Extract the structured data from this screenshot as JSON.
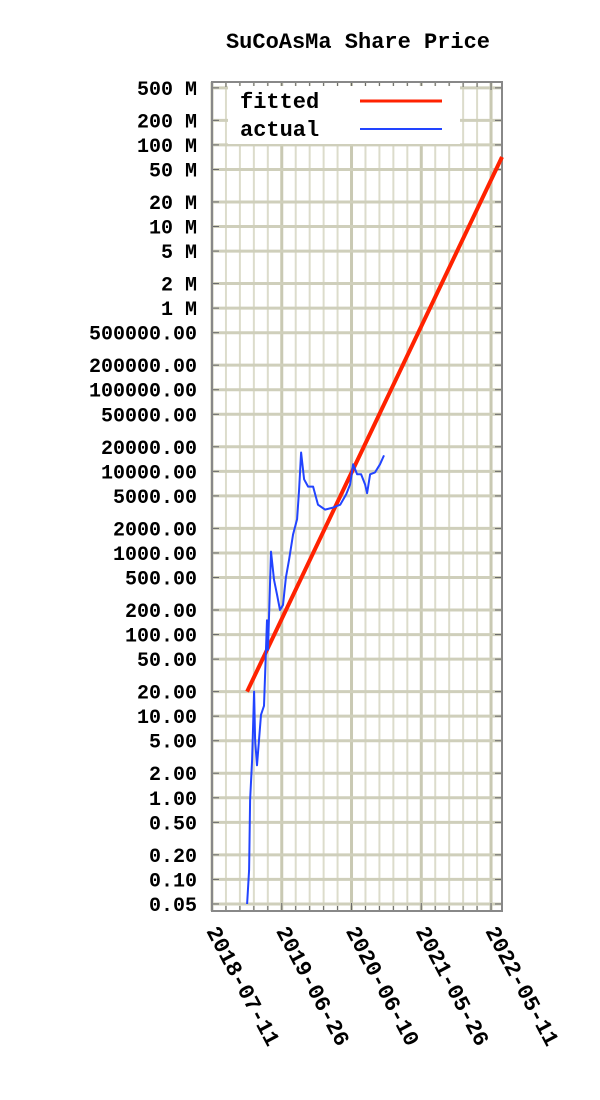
{
  "chart_data": {
    "type": "line",
    "title": "SuCoAsMa Share Price",
    "xlabel": "",
    "ylabel": "",
    "y_scale": "log",
    "ylim": [
      0.041,
      590000000
    ],
    "xlim": [
      "2018-07-11",
      "2022-07-05"
    ],
    "grid": true,
    "legend_position": "top-left",
    "x_ticks": [
      "2018-07-11",
      "2019-06-26",
      "2020-06-10",
      "2021-05-26",
      "2022-05-11"
    ],
    "y_ticks": [
      {
        "value": 500000000,
        "label": "500 M"
      },
      {
        "value": 200000000,
        "label": "200 M"
      },
      {
        "value": 100000000,
        "label": "100 M"
      },
      {
        "value": 50000000,
        "label": "50 M"
      },
      {
        "value": 20000000,
        "label": "20 M"
      },
      {
        "value": 10000000,
        "label": "10 M"
      },
      {
        "value": 5000000,
        "label": "5 M"
      },
      {
        "value": 2000000,
        "label": "2 M"
      },
      {
        "value": 1000000,
        "label": "1 M"
      },
      {
        "value": 500000,
        "label": "500000.00"
      },
      {
        "value": 200000,
        "label": "200000.00"
      },
      {
        "value": 100000,
        "label": "100000.00"
      },
      {
        "value": 50000,
        "label": "50000.00"
      },
      {
        "value": 20000,
        "label": "20000.00"
      },
      {
        "value": 10000,
        "label": "10000.00"
      },
      {
        "value": 5000,
        "label": "5000.00"
      },
      {
        "value": 2000,
        "label": "2000.00"
      },
      {
        "value": 1000,
        "label": "1000.00"
      },
      {
        "value": 500,
        "label": "500.00"
      },
      {
        "value": 200,
        "label": "200.00"
      },
      {
        "value": 100,
        "label": "100.00"
      },
      {
        "value": 50,
        "label": "50.00"
      },
      {
        "value": 20,
        "label": "20.00"
      },
      {
        "value": 10,
        "label": "10.00"
      },
      {
        "value": 5,
        "label": "5.00"
      },
      {
        "value": 2,
        "label": "2.00"
      },
      {
        "value": 1,
        "label": "1.00"
      },
      {
        "value": 0.5,
        "label": "0.50"
      },
      {
        "value": 0.2,
        "label": "0.20"
      },
      {
        "value": 0.1,
        "label": "0.10"
      },
      {
        "value": 0.05,
        "label": "0.05"
      }
    ],
    "series": [
      {
        "name": "fitted",
        "color": "#ff2200",
        "points": [
          [
            "2019-01-03",
            20
          ],
          [
            "2022-07-05",
            71000000
          ]
        ]
      },
      {
        "name": "actual",
        "color": "#2244ff",
        "points": [
          [
            "2019-01-03",
            0.05
          ],
          [
            "2019-01-13",
            0.13
          ],
          [
            "2019-01-18",
            0.94
          ],
          [
            "2019-01-28",
            2.9
          ],
          [
            "2019-02-07",
            20
          ],
          [
            "2019-02-12",
            5.1
          ],
          [
            "2019-02-22",
            2.5
          ],
          [
            "2019-03-04",
            5.1
          ],
          [
            "2019-03-14",
            10.4
          ],
          [
            "2019-03-29",
            13.4
          ],
          [
            "2019-04-13",
            150
          ],
          [
            "2019-04-18",
            65
          ],
          [
            "2019-05-03",
            1040
          ],
          [
            "2019-05-18",
            470
          ],
          [
            "2019-06-02",
            310
          ],
          [
            "2019-06-17",
            200
          ],
          [
            "2019-07-02",
            230
          ],
          [
            "2019-07-17",
            500
          ],
          [
            "2019-08-02",
            830
          ],
          [
            "2019-08-22",
            1700
          ],
          [
            "2019-09-11",
            2600
          ],
          [
            "2019-09-21",
            6000
          ],
          [
            "2019-10-01",
            17000
          ],
          [
            "2019-10-16",
            8000
          ],
          [
            "2019-11-05",
            6500
          ],
          [
            "2019-11-30",
            6500
          ],
          [
            "2019-12-25",
            3900
          ],
          [
            "2020-01-29",
            3400
          ],
          [
            "2020-03-09",
            3600
          ],
          [
            "2020-04-14",
            3900
          ],
          [
            "2020-05-14",
            5200
          ],
          [
            "2020-06-03",
            6900
          ],
          [
            "2020-06-18",
            12200
          ],
          [
            "2020-07-08",
            9200
          ],
          [
            "2020-07-28",
            9200
          ],
          [
            "2020-08-17",
            6900
          ],
          [
            "2020-08-27",
            5400
          ],
          [
            "2020-09-11",
            9200
          ],
          [
            "2020-10-06",
            9700
          ],
          [
            "2020-10-31",
            12200
          ],
          [
            "2020-11-20",
            15700
          ]
        ]
      }
    ]
  }
}
